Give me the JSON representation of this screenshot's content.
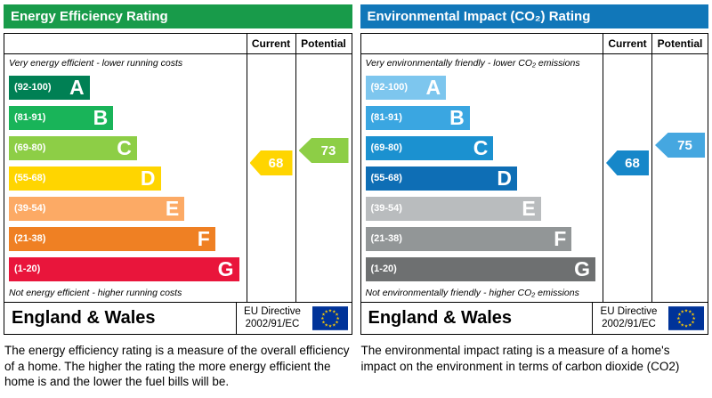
{
  "chart_data": [
    {
      "type": "bar",
      "title": "Energy Efficiency Rating",
      "header_color": "#189b4a",
      "columns": {
        "current": "Current",
        "potential": "Potential"
      },
      "top_caption": "Very energy efficient - lower running costs",
      "bottom_caption": "Not energy efficient - higher running costs",
      "bands": [
        {
          "letter": "A",
          "range": "(92-100)",
          "min": 92,
          "max": 100,
          "color": "#008054",
          "width": "34%"
        },
        {
          "letter": "B",
          "range": "(81-91)",
          "min": 81,
          "max": 91,
          "color": "#19b459",
          "width": "44%"
        },
        {
          "letter": "C",
          "range": "(69-80)",
          "min": 69,
          "max": 80,
          "color": "#8dce46",
          "width": "54%"
        },
        {
          "letter": "D",
          "range": "(55-68)",
          "min": 55,
          "max": 68,
          "color": "#ffd500",
          "width": "64%"
        },
        {
          "letter": "E",
          "range": "(39-54)",
          "min": 39,
          "max": 54,
          "color": "#fcaa65",
          "width": "74%"
        },
        {
          "letter": "F",
          "range": "(21-38)",
          "min": 21,
          "max": 38,
          "color": "#ef8023",
          "width": "87%"
        },
        {
          "letter": "G",
          "range": "(1-20)",
          "min": 1,
          "max": 20,
          "color": "#e9153b",
          "width": "97%"
        }
      ],
      "current": {
        "value": 68,
        "color": "#ffd500"
      },
      "potential": {
        "value": 73,
        "color": "#8dce46"
      },
      "footer": {
        "region": "England & Wales",
        "directive_line1": "EU Directive",
        "directive_line2": "2002/91/EC"
      },
      "description": "The energy efficiency rating is a measure of the overall efficiency of a home.  The higher the rating the more energy efficient the home is and the lower the fuel bills will be."
    },
    {
      "type": "bar",
      "title": "Environmental Impact (CO₂) Rating",
      "header_color": "#1177b9",
      "columns": {
        "current": "Current",
        "potential": "Potential"
      },
      "top_caption": "Very environmentally friendly - lower CO₂ emissions",
      "bottom_caption": "Not environmentally friendly - higher CO₂ emissions",
      "bands": [
        {
          "letter": "A",
          "range": "(92-100)",
          "min": 92,
          "max": 100,
          "color": "#7dc6ee",
          "width": "34%"
        },
        {
          "letter": "B",
          "range": "(81-91)",
          "min": 81,
          "max": 91,
          "color": "#3aa6e1",
          "width": "44%"
        },
        {
          "letter": "C",
          "range": "(69-80)",
          "min": 69,
          "max": 80,
          "color": "#1b91d0",
          "width": "54%"
        },
        {
          "letter": "D",
          "range": "(55-68)",
          "min": 55,
          "max": 68,
          "color": "#0e6eb5",
          "width": "64%"
        },
        {
          "letter": "E",
          "range": "(39-54)",
          "min": 39,
          "max": 54,
          "color": "#b9bcbe",
          "width": "74%"
        },
        {
          "letter": "F",
          "range": "(21-38)",
          "min": 21,
          "max": 38,
          "color": "#929697",
          "width": "87%"
        },
        {
          "letter": "G",
          "range": "(1-20)",
          "min": 1,
          "max": 20,
          "color": "#6e7071",
          "width": "97%"
        }
      ],
      "current": {
        "value": 68,
        "color": "#1687c9"
      },
      "potential": {
        "value": 75,
        "color": "#45a7e0"
      },
      "footer": {
        "region": "England & Wales",
        "directive_line1": "EU Directive",
        "directive_line2": "2002/91/EC"
      },
      "description": "The environmental impact rating is a measure of a home's impact on the environment in terms of carbon dioxide (CO2)"
    }
  ],
  "flag_colors": {
    "field": "#003399",
    "stars": "#ffcc00"
  }
}
